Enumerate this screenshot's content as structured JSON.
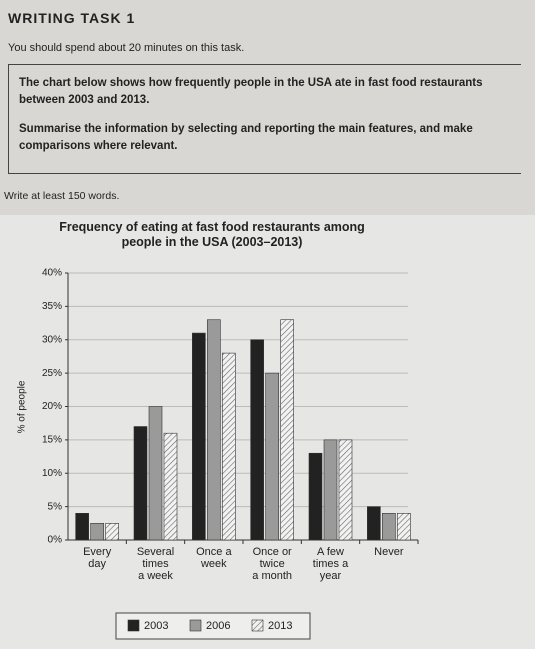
{
  "task": {
    "heading": "WRITING TASK 1",
    "instruction": "You should spend about 20 minutes on this task.",
    "prompt": "The chart below shows how frequently people in the USA ate in fast food restaurants between 2003 and 2013.",
    "task": "Summarise the information by selecting and reporting the main features, and make comparisons where relevant.",
    "length": "Write at least 150 words."
  },
  "chart_data": {
    "type": "bar",
    "title": "Frequency of eating at fast food restaurants among people in the USA (2003–2013)",
    "y_label": "% of people",
    "categories": [
      "Every\nday",
      "Several\ntimes\na week",
      "Once a\nweek",
      "Once or\ntwice\na month",
      "A few\ntimes a\nyear",
      "Never"
    ],
    "series": [
      {
        "name": "2003",
        "color": "#222222",
        "values": [
          4,
          17,
          31,
          30,
          13,
          5
        ]
      },
      {
        "name": "2006",
        "color": "#9a9a9a",
        "values": [
          2.5,
          20,
          33,
          25,
          15,
          4
        ]
      },
      {
        "name": "2013",
        "color": "#f2f2f2",
        "pattern": "hatch",
        "values": [
          2.5,
          16,
          28,
          33,
          15,
          4
        ]
      }
    ],
    "ylim": [
      0,
      40
    ],
    "yticks": [
      {
        "value": 0,
        "label": "0%"
      },
      {
        "value": 5,
        "label": "5%"
      },
      {
        "value": 10,
        "label": "10%"
      },
      {
        "value": 15,
        "label": "15%"
      },
      {
        "value": 20,
        "label": "20%"
      },
      {
        "value": 25,
        "label": "25%"
      },
      {
        "value": 30,
        "label": "30%"
      },
      {
        "value": 35,
        "label": "35%"
      },
      {
        "value": 40,
        "label": "40%"
      }
    ],
    "grid": true,
    "legend": "bottom"
  }
}
